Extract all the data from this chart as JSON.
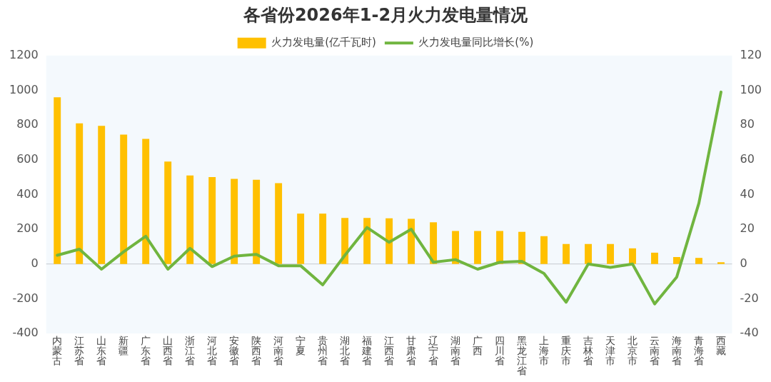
{
  "chart_data": {
    "type": "bar",
    "title": "各省份2026年1-2月火力发电量情况",
    "categories": [
      "内蒙古",
      "江苏省",
      "山东省",
      "新疆",
      "广东省",
      "山西省",
      "浙江省",
      "河北省",
      "安徽省",
      "陕西省",
      "河南省",
      "宁夏",
      "贵州省",
      "湖北省",
      "福建省",
      "江西省",
      "甘肃省",
      "辽宁省",
      "湖南省",
      "广西",
      "四川省",
      "黑龙江省",
      "上海市",
      "重庆市",
      "吉林省",
      "天津市",
      "北京市",
      "云南省",
      "海南省",
      "青海省",
      "西藏"
    ],
    "series": [
      {
        "name": "火力发电量(亿千瓦时)",
        "type": "bar",
        "color": "#ffc000",
        "values": [
          960,
          810,
          795,
          745,
          720,
          590,
          510,
          500,
          490,
          485,
          465,
          290,
          290,
          265,
          265,
          263,
          260,
          240,
          190,
          190,
          190,
          185,
          160,
          115,
          115,
          115,
          90,
          65,
          40,
          35,
          10
        ]
      },
      {
        "name": "火力发电量同比增长(%)",
        "type": "line",
        "axis": "y2",
        "color": "#70b53f",
        "values": [
          5,
          8.5,
          -3,
          7,
          16,
          -3,
          9,
          -1.5,
          4.5,
          5.5,
          -1,
          -1,
          -12,
          5,
          21,
          12.5,
          20,
          1,
          2.5,
          -3,
          1,
          1.5,
          -5.5,
          -22,
          0,
          -2,
          0,
          -23,
          -7.5,
          35,
          99
        ]
      }
    ],
    "ylim": [
      -400,
      1200
    ],
    "yticks": [
      -400,
      -200,
      0,
      200,
      400,
      600,
      800,
      1000,
      1200
    ],
    "y2lim": [
      -40,
      120
    ],
    "y2ticks": [
      -40,
      -20,
      0,
      20,
      40,
      60,
      80,
      100,
      120
    ],
    "ref_lines": [
      {
        "axis": "y",
        "value": 0,
        "color": "#cfd3d8"
      }
    ],
    "grid": false,
    "legend": "top",
    "marker": "none"
  }
}
